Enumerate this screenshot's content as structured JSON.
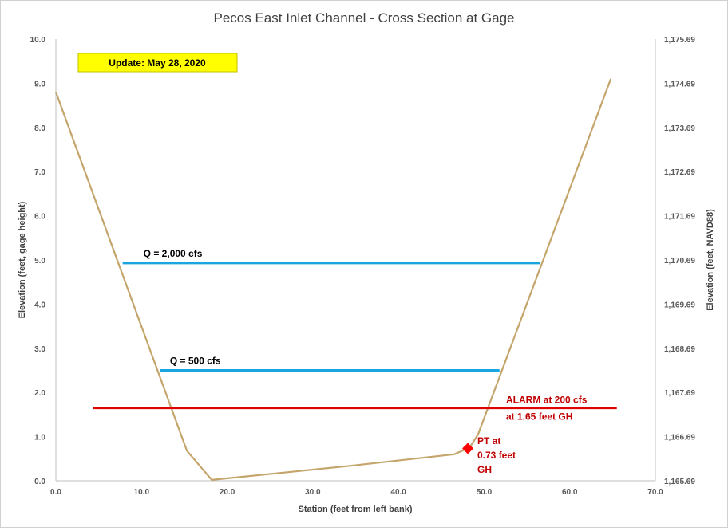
{
  "chart_data": {
    "type": "line",
    "title": "Pecos East Inlet Channel - Cross Section at Gage",
    "xlabel": "Station (feet from left bank)",
    "ylabel": "Elevation (feet, gage height)",
    "y2label": "Elevation (feet, NAVD88)",
    "xlim": [
      0,
      70
    ],
    "ylim": [
      0,
      10
    ],
    "y2lim": [
      1165.69,
      1175.69
    ],
    "x_ticks": [
      "0.0",
      "10.0",
      "20.0",
      "30.0",
      "40.0",
      "50.0",
      "60.0",
      "70.0"
    ],
    "y_ticks": [
      "0.0",
      "1.0",
      "2.0",
      "3.0",
      "4.0",
      "5.0",
      "6.0",
      "7.0",
      "8.0",
      "9.0",
      "10.0"
    ],
    "y2_ticks": [
      "1,165.69",
      "1,166.69",
      "1,167.69",
      "1,168.69",
      "1,169.69",
      "1,170.69",
      "1,171.69",
      "1,172.69",
      "1,173.69",
      "1,174.69",
      "1,175.69"
    ],
    "grid": false,
    "update_label": "Update: May 28, 2020",
    "cross_section": {
      "color": "#c4a56c",
      "x": [
        0,
        15.3,
        18.2,
        34,
        46.5,
        48.3,
        49.3,
        64.8
      ],
      "y": [
        8.8,
        0.68,
        0.02,
        0.33,
        0.6,
        0.75,
        1.05,
        9.1
      ]
    },
    "flow_lines": [
      {
        "label": "Q = 2,000  cfs",
        "x": [
          7.8,
          56.5
        ],
        "y": 4.93,
        "color": "#1ba5e0"
      },
      {
        "label": "Q = 500  cfs",
        "x": [
          12.2,
          51.8
        ],
        "y": 2.5,
        "color": "#1ba5e0"
      }
    ],
    "alarm_line": {
      "label_line1": "ALARM at 200  cfs",
      "label_line2": "at 1.65 feet GH",
      "x": [
        4.3,
        65.5
      ],
      "y": 1.65,
      "color": "#e00000"
    },
    "pt_marker": {
      "x": 48.1,
      "y": 0.73,
      "color": "#ff0000",
      "label_lines": [
        "PT at",
        "0.73  feet",
        "GH"
      ]
    }
  }
}
